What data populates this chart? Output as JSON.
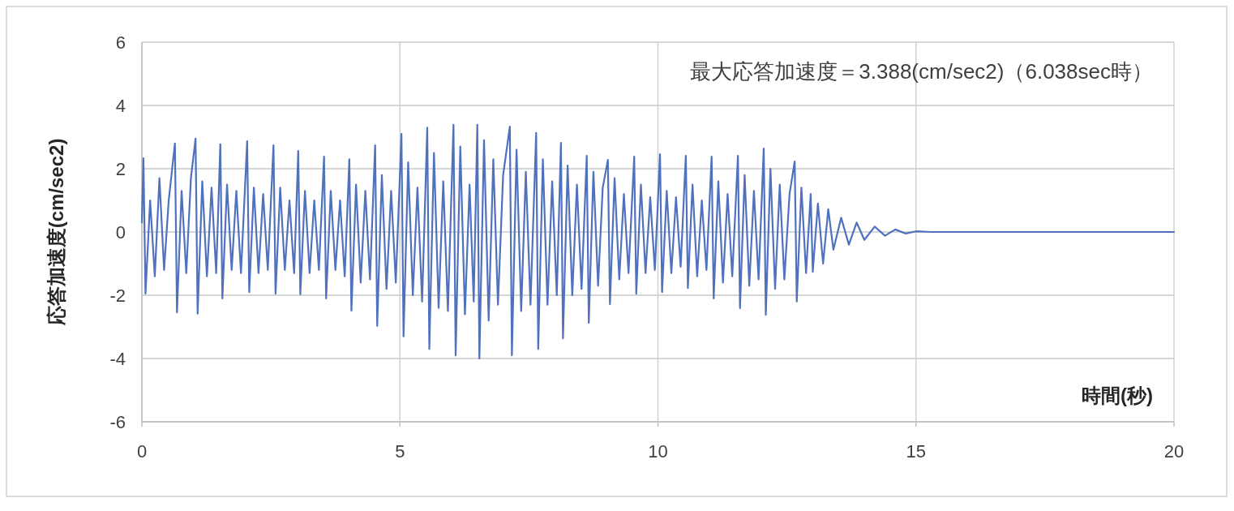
{
  "chart_data": {
    "type": "line",
    "ylabel": "応答加速度(cm/sec2)",
    "xlabel": "時間(秒)",
    "annotations": [
      "最大応答加速度＝3.388(cm/sec2)（6.038sec時）"
    ],
    "xlim": [
      0,
      20
    ],
    "xticks": [
      0,
      5,
      10,
      15,
      20
    ],
    "ylim": [
      -6,
      6
    ],
    "yticks": [
      -6,
      -4,
      -2,
      0,
      2,
      4,
      6
    ],
    "grid": true,
    "marker": "none",
    "line_style": "solid",
    "series": [
      {
        "color": "#4f71be",
        "x": [
          0,
          0.03,
          0.07,
          0.16,
          0.25,
          0.34,
          0.43,
          0.52,
          0.64,
          0.68,
          0.77,
          0.86,
          0.95,
          1.04,
          1.08,
          1.17,
          1.26,
          1.35,
          1.44,
          1.52,
          1.56,
          1.65,
          1.74,
          1.83,
          1.92,
          2.04,
          2.08,
          2.17,
          2.26,
          2.35,
          2.44,
          2.55,
          2.59,
          2.68,
          2.77,
          2.86,
          2.95,
          3.03,
          3.07,
          3.16,
          3.25,
          3.34,
          3.43,
          3.53,
          3.57,
          3.66,
          3.75,
          3.84,
          3.93,
          4.02,
          4.06,
          4.15,
          4.24,
          4.33,
          4.42,
          4.52,
          4.56,
          4.65,
          4.74,
          4.83,
          4.92,
          5.03,
          5.07,
          5.16,
          5.25,
          5.34,
          5.43,
          5.53,
          5.57,
          5.66,
          5.75,
          5.84,
          5.93,
          6.038,
          6.08,
          6.17,
          6.26,
          6.35,
          6.43,
          6.5,
          6.54,
          6.63,
          6.72,
          6.81,
          6.9,
          7.0,
          7.13,
          7.17,
          7.26,
          7.35,
          7.44,
          7.53,
          7.64,
          7.68,
          7.77,
          7.86,
          7.95,
          8.04,
          8.12,
          8.16,
          8.25,
          8.34,
          8.43,
          8.52,
          8.62,
          8.66,
          8.75,
          8.84,
          8.93,
          9.03,
          9.07,
          9.16,
          9.25,
          9.34,
          9.43,
          9.54,
          9.58,
          9.67,
          9.76,
          9.85,
          9.94,
          10.04,
          10.08,
          10.17,
          10.26,
          10.35,
          10.44,
          10.54,
          10.58,
          10.67,
          10.76,
          10.85,
          10.94,
          11.04,
          11.08,
          11.17,
          11.26,
          11.35,
          11.44,
          11.55,
          11.59,
          11.68,
          11.77,
          11.86,
          11.95,
          12.05,
          12.09,
          12.18,
          12.27,
          12.36,
          12.45,
          12.55,
          12.65,
          12.69,
          12.78,
          12.87,
          12.96,
          13.0,
          13.1,
          13.2,
          13.3,
          13.4,
          13.55,
          13.7,
          13.85,
          14.0,
          14.2,
          14.4,
          14.6,
          14.8,
          15.0,
          15.3,
          20
        ],
        "values": [
          0.3,
          2.33,
          -1.95,
          1.0,
          -1.4,
          1.7,
          -1.2,
          1.0,
          2.8,
          -2.54,
          1.3,
          -1.3,
          1.7,
          2.95,
          -2.58,
          1.6,
          -1.4,
          1.4,
          -1.3,
          2.77,
          -2.1,
          1.5,
          -1.2,
          1.3,
          -1.3,
          2.87,
          -1.9,
          1.4,
          -1.3,
          1.2,
          -1.2,
          2.74,
          -1.95,
          1.4,
          -1.2,
          1.0,
          -1.3,
          2.56,
          -1.97,
          1.3,
          -1.3,
          1.0,
          -1.2,
          2.38,
          -2.1,
          1.3,
          -1.2,
          1.0,
          -1.4,
          2.3,
          -2.49,
          1.5,
          -1.6,
          1.3,
          -1.5,
          2.74,
          -2.97,
          1.8,
          -1.8,
          1.3,
          -1.6,
          3.1,
          -3.3,
          2.2,
          -2.0,
          1.4,
          -2.2,
          3.3,
          -3.7,
          2.5,
          -2.4,
          1.6,
          -2.5,
          3.388,
          -3.9,
          2.7,
          -2.6,
          1.5,
          -2.2,
          3.39,
          -4.0,
          2.9,
          -2.8,
          2.3,
          -2.3,
          1.8,
          3.33,
          -3.9,
          2.6,
          -2.5,
          1.9,
          -2.3,
          3.13,
          -3.7,
          2.3,
          -2.3,
          1.6,
          -2.0,
          2.82,
          -3.36,
          2.1,
          -2.0,
          1.5,
          -1.8,
          2.41,
          -2.87,
          1.9,
          -1.7,
          1.4,
          2.28,
          -2.28,
          1.7,
          -1.5,
          1.2,
          -1.3,
          2.38,
          -1.95,
          1.5,
          -1.3,
          1.1,
          -1.2,
          2.46,
          -1.9,
          1.3,
          -1.3,
          1.1,
          -1.1,
          2.41,
          -1.77,
          1.5,
          -1.4,
          1.0,
          -1.2,
          2.38,
          -2.1,
          1.6,
          -1.6,
          1.2,
          -1.4,
          2.41,
          -2.41,
          1.8,
          -1.7,
          1.3,
          -1.5,
          2.64,
          -2.62,
          2.0,
          -1.8,
          1.5,
          -1.5,
          1.2,
          2.23,
          -2.2,
          1.4,
          -1.3,
          1.2,
          -1.26,
          0.9,
          -1.0,
          0.72,
          -0.56,
          0.45,
          -0.4,
          0.3,
          -0.25,
          0.17,
          -0.12,
          0.08,
          -0.05,
          0.02,
          0,
          0
        ]
      }
    ]
  }
}
